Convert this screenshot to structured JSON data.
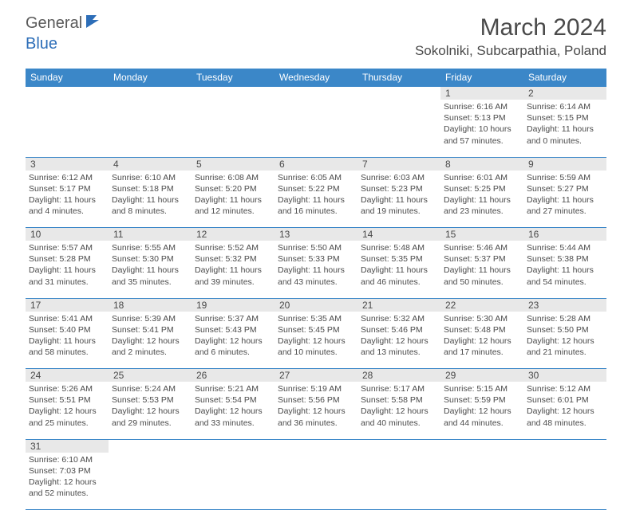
{
  "brand": {
    "part1": "General",
    "part2": "Blue"
  },
  "title": "March 2024",
  "location": "Sokolniki, Subcarpathia, Poland",
  "colors": {
    "header_bg": "#3b87c8",
    "daynum_bg": "#e8e8e8",
    "text": "#4a4a4a",
    "separator": "#3b87c8",
    "brand_blue": "#2d6eb8"
  },
  "weekdays": [
    "Sunday",
    "Monday",
    "Tuesday",
    "Wednesday",
    "Thursday",
    "Friday",
    "Saturday"
  ],
  "weeks": [
    [
      null,
      null,
      null,
      null,
      null,
      {
        "n": "1",
        "sunrise": "6:16 AM",
        "sunset": "5:13 PM",
        "daylight": "10 hours and 57 minutes."
      },
      {
        "n": "2",
        "sunrise": "6:14 AM",
        "sunset": "5:15 PM",
        "daylight": "11 hours and 0 minutes."
      }
    ],
    [
      {
        "n": "3",
        "sunrise": "6:12 AM",
        "sunset": "5:17 PM",
        "daylight": "11 hours and 4 minutes."
      },
      {
        "n": "4",
        "sunrise": "6:10 AM",
        "sunset": "5:18 PM",
        "daylight": "11 hours and 8 minutes."
      },
      {
        "n": "5",
        "sunrise": "6:08 AM",
        "sunset": "5:20 PM",
        "daylight": "11 hours and 12 minutes."
      },
      {
        "n": "6",
        "sunrise": "6:05 AM",
        "sunset": "5:22 PM",
        "daylight": "11 hours and 16 minutes."
      },
      {
        "n": "7",
        "sunrise": "6:03 AM",
        "sunset": "5:23 PM",
        "daylight": "11 hours and 19 minutes."
      },
      {
        "n": "8",
        "sunrise": "6:01 AM",
        "sunset": "5:25 PM",
        "daylight": "11 hours and 23 minutes."
      },
      {
        "n": "9",
        "sunrise": "5:59 AM",
        "sunset": "5:27 PM",
        "daylight": "11 hours and 27 minutes."
      }
    ],
    [
      {
        "n": "10",
        "sunrise": "5:57 AM",
        "sunset": "5:28 PM",
        "daylight": "11 hours and 31 minutes."
      },
      {
        "n": "11",
        "sunrise": "5:55 AM",
        "sunset": "5:30 PM",
        "daylight": "11 hours and 35 minutes."
      },
      {
        "n": "12",
        "sunrise": "5:52 AM",
        "sunset": "5:32 PM",
        "daylight": "11 hours and 39 minutes."
      },
      {
        "n": "13",
        "sunrise": "5:50 AM",
        "sunset": "5:33 PM",
        "daylight": "11 hours and 43 minutes."
      },
      {
        "n": "14",
        "sunrise": "5:48 AM",
        "sunset": "5:35 PM",
        "daylight": "11 hours and 46 minutes."
      },
      {
        "n": "15",
        "sunrise": "5:46 AM",
        "sunset": "5:37 PM",
        "daylight": "11 hours and 50 minutes."
      },
      {
        "n": "16",
        "sunrise": "5:44 AM",
        "sunset": "5:38 PM",
        "daylight": "11 hours and 54 minutes."
      }
    ],
    [
      {
        "n": "17",
        "sunrise": "5:41 AM",
        "sunset": "5:40 PM",
        "daylight": "11 hours and 58 minutes."
      },
      {
        "n": "18",
        "sunrise": "5:39 AM",
        "sunset": "5:41 PM",
        "daylight": "12 hours and 2 minutes."
      },
      {
        "n": "19",
        "sunrise": "5:37 AM",
        "sunset": "5:43 PM",
        "daylight": "12 hours and 6 minutes."
      },
      {
        "n": "20",
        "sunrise": "5:35 AM",
        "sunset": "5:45 PM",
        "daylight": "12 hours and 10 minutes."
      },
      {
        "n": "21",
        "sunrise": "5:32 AM",
        "sunset": "5:46 PM",
        "daylight": "12 hours and 13 minutes."
      },
      {
        "n": "22",
        "sunrise": "5:30 AM",
        "sunset": "5:48 PM",
        "daylight": "12 hours and 17 minutes."
      },
      {
        "n": "23",
        "sunrise": "5:28 AM",
        "sunset": "5:50 PM",
        "daylight": "12 hours and 21 minutes."
      }
    ],
    [
      {
        "n": "24",
        "sunrise": "5:26 AM",
        "sunset": "5:51 PM",
        "daylight": "12 hours and 25 minutes."
      },
      {
        "n": "25",
        "sunrise": "5:24 AM",
        "sunset": "5:53 PM",
        "daylight": "12 hours and 29 minutes."
      },
      {
        "n": "26",
        "sunrise": "5:21 AM",
        "sunset": "5:54 PM",
        "daylight": "12 hours and 33 minutes."
      },
      {
        "n": "27",
        "sunrise": "5:19 AM",
        "sunset": "5:56 PM",
        "daylight": "12 hours and 36 minutes."
      },
      {
        "n": "28",
        "sunrise": "5:17 AM",
        "sunset": "5:58 PM",
        "daylight": "12 hours and 40 minutes."
      },
      {
        "n": "29",
        "sunrise": "5:15 AM",
        "sunset": "5:59 PM",
        "daylight": "12 hours and 44 minutes."
      },
      {
        "n": "30",
        "sunrise": "5:12 AM",
        "sunset": "6:01 PM",
        "daylight": "12 hours and 48 minutes."
      }
    ],
    [
      {
        "n": "31",
        "sunrise": "6:10 AM",
        "sunset": "7:03 PM",
        "daylight": "12 hours and 52 minutes."
      },
      null,
      null,
      null,
      null,
      null,
      null
    ]
  ],
  "labels": {
    "sunrise": "Sunrise:",
    "sunset": "Sunset:",
    "daylight": "Daylight:"
  }
}
